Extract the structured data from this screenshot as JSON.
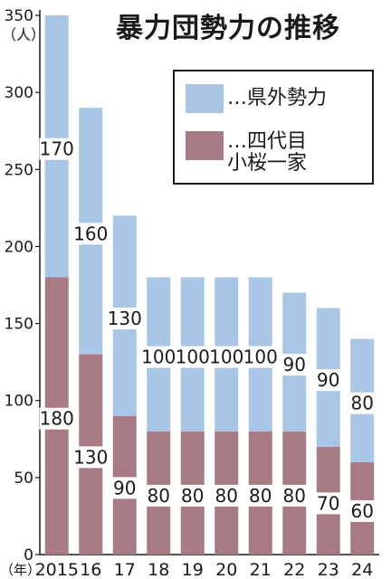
{
  "chart_data": {
    "type": "bar",
    "stacked": true,
    "title": "暴力団勢力の推移",
    "unit_label": "（人）",
    "xunit_label": "（年）",
    "categories": [
      "2015",
      "16",
      "17",
      "18",
      "19",
      "20",
      "21",
      "22",
      "23",
      "24"
    ],
    "yticks": [
      0,
      50,
      100,
      150,
      200,
      250,
      300,
      350
    ],
    "ylim": [
      0,
      350
    ],
    "grid": false,
    "legend_position": "top-right",
    "series": [
      {
        "name": "…四代目\n小桜一家",
        "color": "#a87a84",
        "values": [
          180,
          130,
          90,
          80,
          80,
          80,
          80,
          80,
          70,
          60
        ]
      },
      {
        "name": "…県外勢力",
        "color": "#a9c6e6",
        "values": [
          170,
          160,
          130,
          100,
          100,
          100,
          100,
          90,
          90,
          80
        ]
      }
    ]
  }
}
